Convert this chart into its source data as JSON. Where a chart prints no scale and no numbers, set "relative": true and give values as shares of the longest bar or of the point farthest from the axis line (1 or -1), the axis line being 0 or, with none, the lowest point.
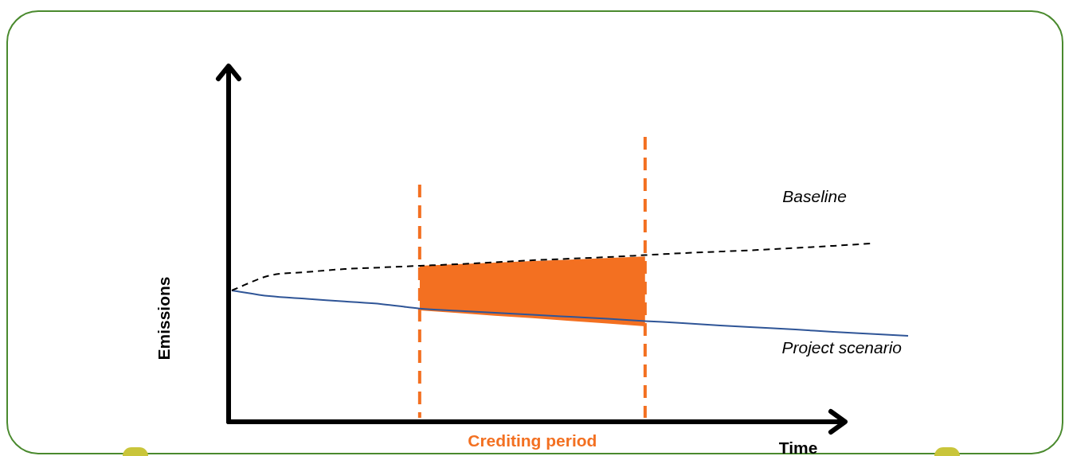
{
  "chart_data": {
    "type": "line",
    "relative": true,
    "xlabel": "Time",
    "ylabel": "Emissions",
    "legend": false,
    "marker": "none",
    "annotations": [
      "Crediting period"
    ],
    "categories": [
      null,
      null,
      null,
      null,
      null,
      null,
      null,
      null,
      null,
      null,
      null,
      null,
      null,
      null,
      null,
      null,
      null,
      null,
      null
    ],
    "series": [
      {
        "name": "Baseline",
        "color": "#000000",
        "line_style": "dashed",
        "values": [
          0.737,
          0.82,
          0.84,
          0.857,
          0.866,
          0.875,
          0.884,
          0.895,
          0.906,
          0.915,
          0.924,
          0.935,
          0.946,
          0.955,
          0.964,
          0.975,
          0.987,
          1.0,
          null
        ]
      },
      {
        "name": "Project scenario",
        "color": "#2f5597",
        "line_style": "solid",
        "values": [
          0.737,
          0.705,
          0.69,
          0.675,
          0.66,
          0.635,
          0.623,
          0.612,
          0.6,
          0.589,
          0.578,
          0.565,
          0.554,
          0.54,
          0.529,
          0.518,
          0.504,
          0.493,
          0.482
        ],
        "upper": [
          null,
          null,
          null,
          null,
          null,
          0.875,
          0.884,
          0.893,
          0.902,
          0.91,
          0.919,
          0.928,
          null,
          null,
          null,
          null,
          null,
          null,
          null
        ],
        "lower": [
          null,
          null,
          null,
          null,
          null,
          0.625,
          0.61,
          0.595,
          0.581,
          0.566,
          0.551,
          0.536,
          null,
          null,
          null,
          null,
          null,
          null,
          null
        ]
      }
    ]
  }
}
